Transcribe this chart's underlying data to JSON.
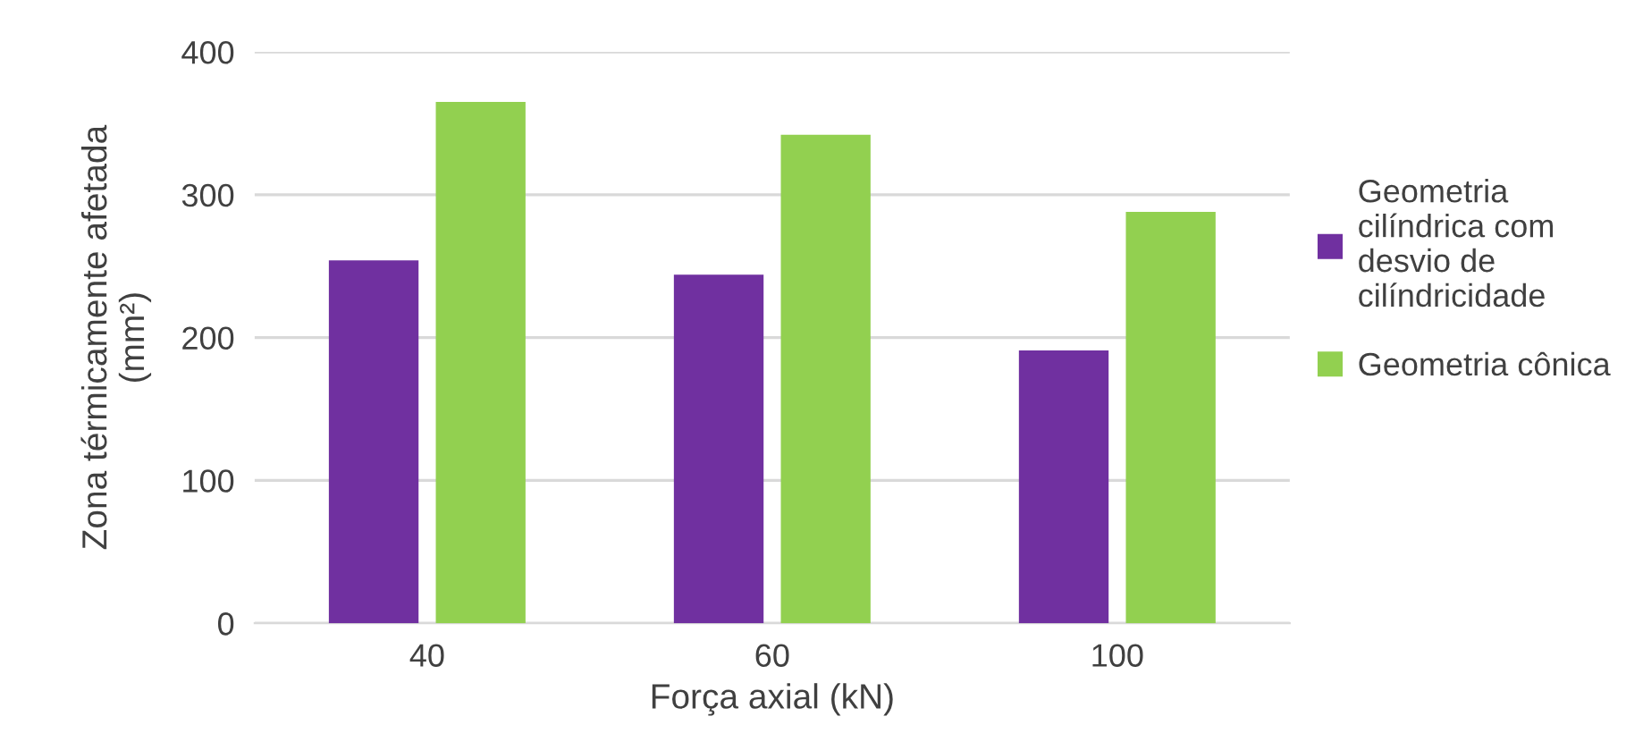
{
  "chart_data": {
    "type": "bar",
    "xlabel": "Força axial (kN)",
    "ylabel": "Zona térmicamente afetada (mm²)",
    "categories": [
      "40",
      "60",
      "100"
    ],
    "series": [
      {
        "name": "Geometria cilíndrica com desvio de cilíndricidade",
        "color": "#7030a0",
        "values": [
          254,
          244,
          191
        ]
      },
      {
        "name": "Geometria cônica",
        "color": "#92d050",
        "values": [
          365,
          342,
          288
        ]
      }
    ],
    "ylim": [
      0,
      400
    ],
    "yticks": [
      0,
      100,
      200,
      300,
      400
    ],
    "grid": "y",
    "legend": "right"
  }
}
